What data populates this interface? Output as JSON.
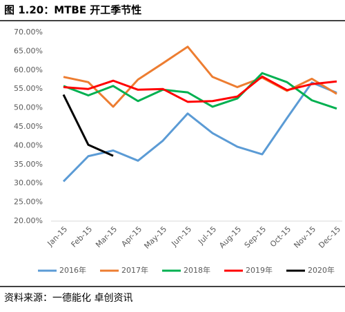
{
  "chart_data": {
    "type": "line",
    "title": "图 1.20：MTBE 开工季节性",
    "source": "资料来源：一德能化 卓创资讯",
    "categories": [
      "Jan-15",
      "Feb-15",
      "Mar-15",
      "Apr-15",
      "May-15",
      "Jun-15",
      "Jul-15",
      "Aug-15",
      "Sep-15",
      "Oct-15",
      "Nov-15",
      "Dec-15"
    ],
    "series": [
      {
        "name": "2016年",
        "color": "#5b9bd5",
        "values": [
          30.5,
          37.2,
          38.7,
          36.0,
          41.3,
          48.5,
          43.3,
          39.7,
          37.7,
          47.3,
          56.7,
          54.0
        ]
      },
      {
        "name": "2017年",
        "color": "#ed7d31",
        "values": [
          58.2,
          56.8,
          50.3,
          57.5,
          61.8,
          66.2,
          58.2,
          55.5,
          58.0,
          54.5,
          57.7,
          53.7
        ]
      },
      {
        "name": "2018年",
        "color": "#00b050",
        "values": [
          55.8,
          53.3,
          55.8,
          51.8,
          54.8,
          54.1,
          50.3,
          52.5,
          59.2,
          56.8,
          52.0,
          49.8
        ]
      },
      {
        "name": "2019年",
        "color": "#ff0000",
        "values": [
          55.5,
          55.0,
          57.2,
          54.8,
          55.0,
          51.6,
          51.8,
          53.0,
          58.3,
          54.7,
          56.3,
          57.0
        ]
      },
      {
        "name": "2020年",
        "color": "#000000",
        "values": [
          53.5,
          40.2,
          37.3,
          null,
          null,
          null,
          null,
          null,
          null,
          null,
          null,
          null
        ]
      }
    ],
    "ylim": [
      20,
      70
    ],
    "yticks": [
      {
        "value": 20,
        "label": "20.00%"
      },
      {
        "value": 25,
        "label": "25.00%"
      },
      {
        "value": 30,
        "label": "30.00%"
      },
      {
        "value": 35,
        "label": "35.00%"
      },
      {
        "value": 40,
        "label": "40.00%"
      },
      {
        "value": 45,
        "label": "45.00%"
      },
      {
        "value": 50,
        "label": "50.00%"
      },
      {
        "value": 55,
        "label": "55.00%"
      },
      {
        "value": 60,
        "label": "60.00%"
      },
      {
        "value": 65,
        "label": "65.00%"
      },
      {
        "value": 70,
        "label": "70.00%"
      }
    ]
  }
}
